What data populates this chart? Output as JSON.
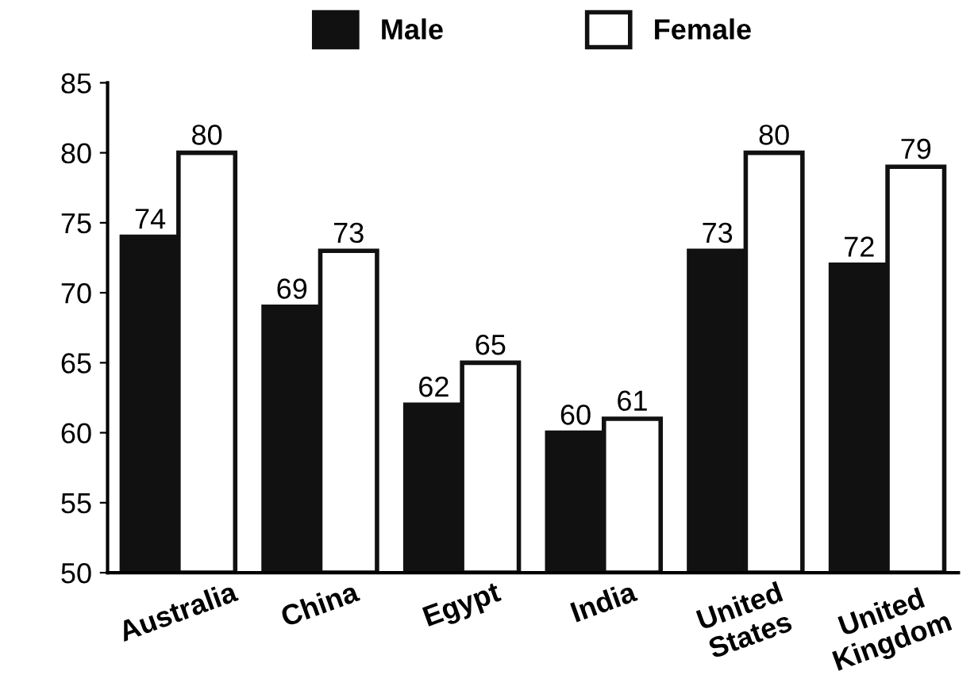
{
  "chart_data": {
    "type": "bar",
    "categories": [
      "Australia",
      "China",
      "Egypt",
      "India",
      "United\nStates",
      "United\nKingdom"
    ],
    "series": [
      {
        "name": "Male",
        "color": "#111111",
        "values": [
          74,
          69,
          62,
          60,
          73,
          72
        ]
      },
      {
        "name": "Female",
        "color": "#ffffff",
        "values": [
          80,
          73,
          65,
          61,
          80,
          79
        ]
      }
    ],
    "ylim": [
      50,
      85
    ],
    "yticks": [
      50,
      55,
      60,
      65,
      70,
      75,
      80,
      85
    ],
    "data_labels": true,
    "grid": false,
    "legend": "top"
  }
}
